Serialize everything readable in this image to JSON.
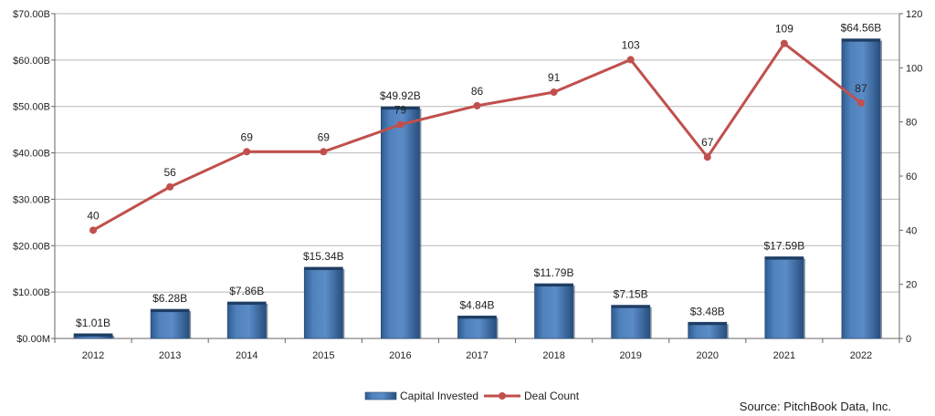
{
  "chart_data": {
    "type": "bar",
    "categories": [
      "2012",
      "2013",
      "2014",
      "2015",
      "2016",
      "2017",
      "2018",
      "2019",
      "2020",
      "2021",
      "2022"
    ],
    "series": [
      {
        "name": "Capital Invested",
        "type": "bar",
        "axis": "left",
        "color": "#4f81bd",
        "values": [
          1.01,
          6.28,
          7.86,
          15.34,
          49.92,
          4.84,
          11.79,
          7.15,
          3.48,
          17.59,
          64.56
        ],
        "labels": [
          "$1.01B",
          "$6.28B",
          "$7.86B",
          "$15.34B",
          "$49.92B",
          "$4.84B",
          "$11.79B",
          "$7.15B",
          "$3.48B",
          "$17.59B",
          "$64.56B"
        ]
      },
      {
        "name": "Deal Count",
        "type": "line",
        "axis": "right",
        "color": "#c0504d",
        "values": [
          40,
          56,
          69,
          69,
          79,
          86,
          91,
          103,
          67,
          109,
          87
        ],
        "labels": [
          "40",
          "56",
          "69",
          "69",
          "79",
          "86",
          "91",
          "103",
          "67",
          "109",
          "87"
        ]
      }
    ],
    "left_axis": {
      "ylim": [
        0,
        70
      ],
      "ticks": [
        0,
        10,
        20,
        30,
        40,
        50,
        60,
        70
      ],
      "tick_labels": [
        "$0.00M",
        "$10.00B",
        "$20.00B",
        "$30.00B",
        "$40.00B",
        "$50.00B",
        "$60.00B",
        "$70.00B"
      ]
    },
    "right_axis": {
      "ylim": [
        0,
        120
      ],
      "ticks": [
        0,
        20,
        40,
        60,
        80,
        100,
        120
      ],
      "tick_labels": [
        "0",
        "20",
        "40",
        "60",
        "80",
        "100",
        "120"
      ]
    },
    "grid": true,
    "legend_position": "bottom-center",
    "source": "Source: PitchBook Data, Inc."
  }
}
